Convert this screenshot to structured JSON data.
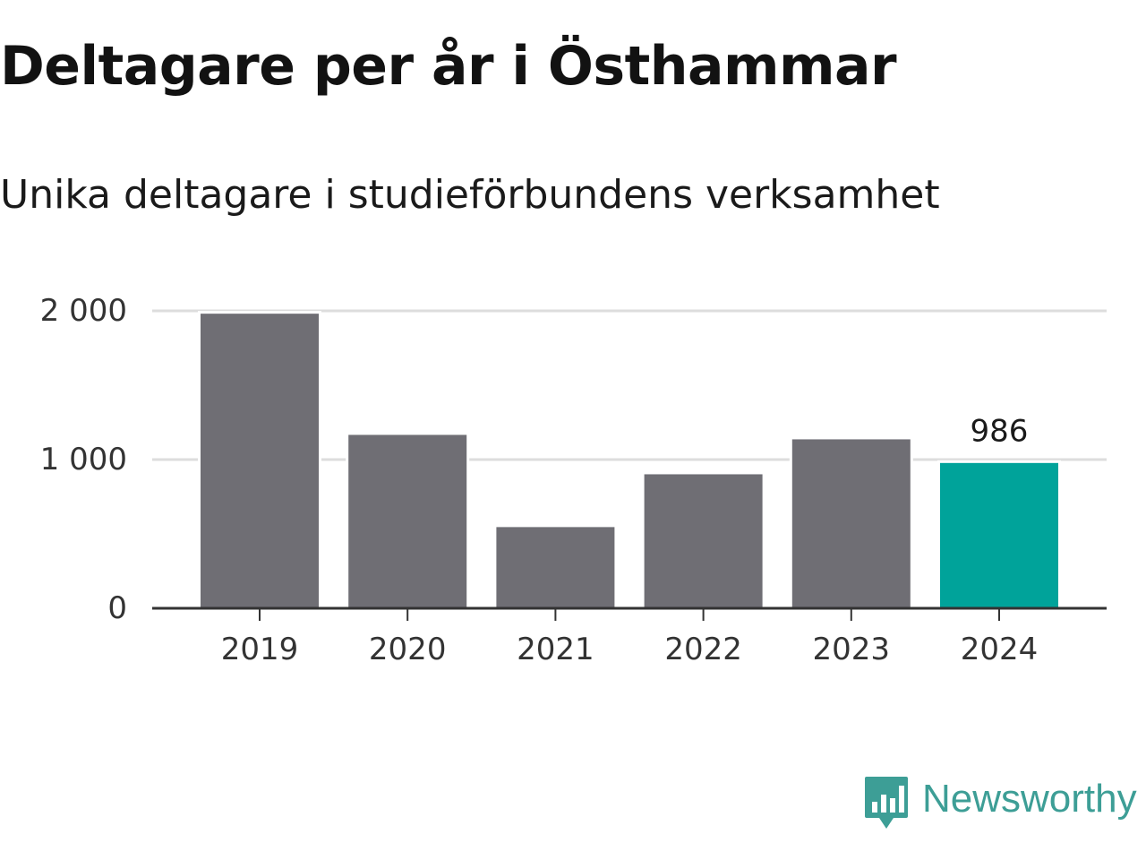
{
  "chart_data": {
    "type": "bar",
    "title": "Deltagare per år i Östhammar",
    "subtitle": "Unika deltagare i studieförbundens verksamhet",
    "categories": [
      "2019",
      "2020",
      "2021",
      "2022",
      "2023",
      "2024"
    ],
    "values": [
      1990,
      1175,
      555,
      910,
      1145,
      986
    ],
    "ylim": [
      0,
      2000
    ],
    "yticks": [
      0,
      1000,
      2000
    ],
    "ytick_labels": [
      "0",
      "1 000",
      "2 000"
    ],
    "grid": true,
    "highlight_index": 5,
    "highlight_label": "986",
    "colors": {
      "bar": "#6f6e74",
      "highlight": "#00a39a",
      "grid": "#dddddd",
      "axis": "#333333"
    }
  },
  "brand": {
    "name": "Newsworthy",
    "icon": "newsworthy-logo-icon",
    "color": "#3d9e96"
  }
}
